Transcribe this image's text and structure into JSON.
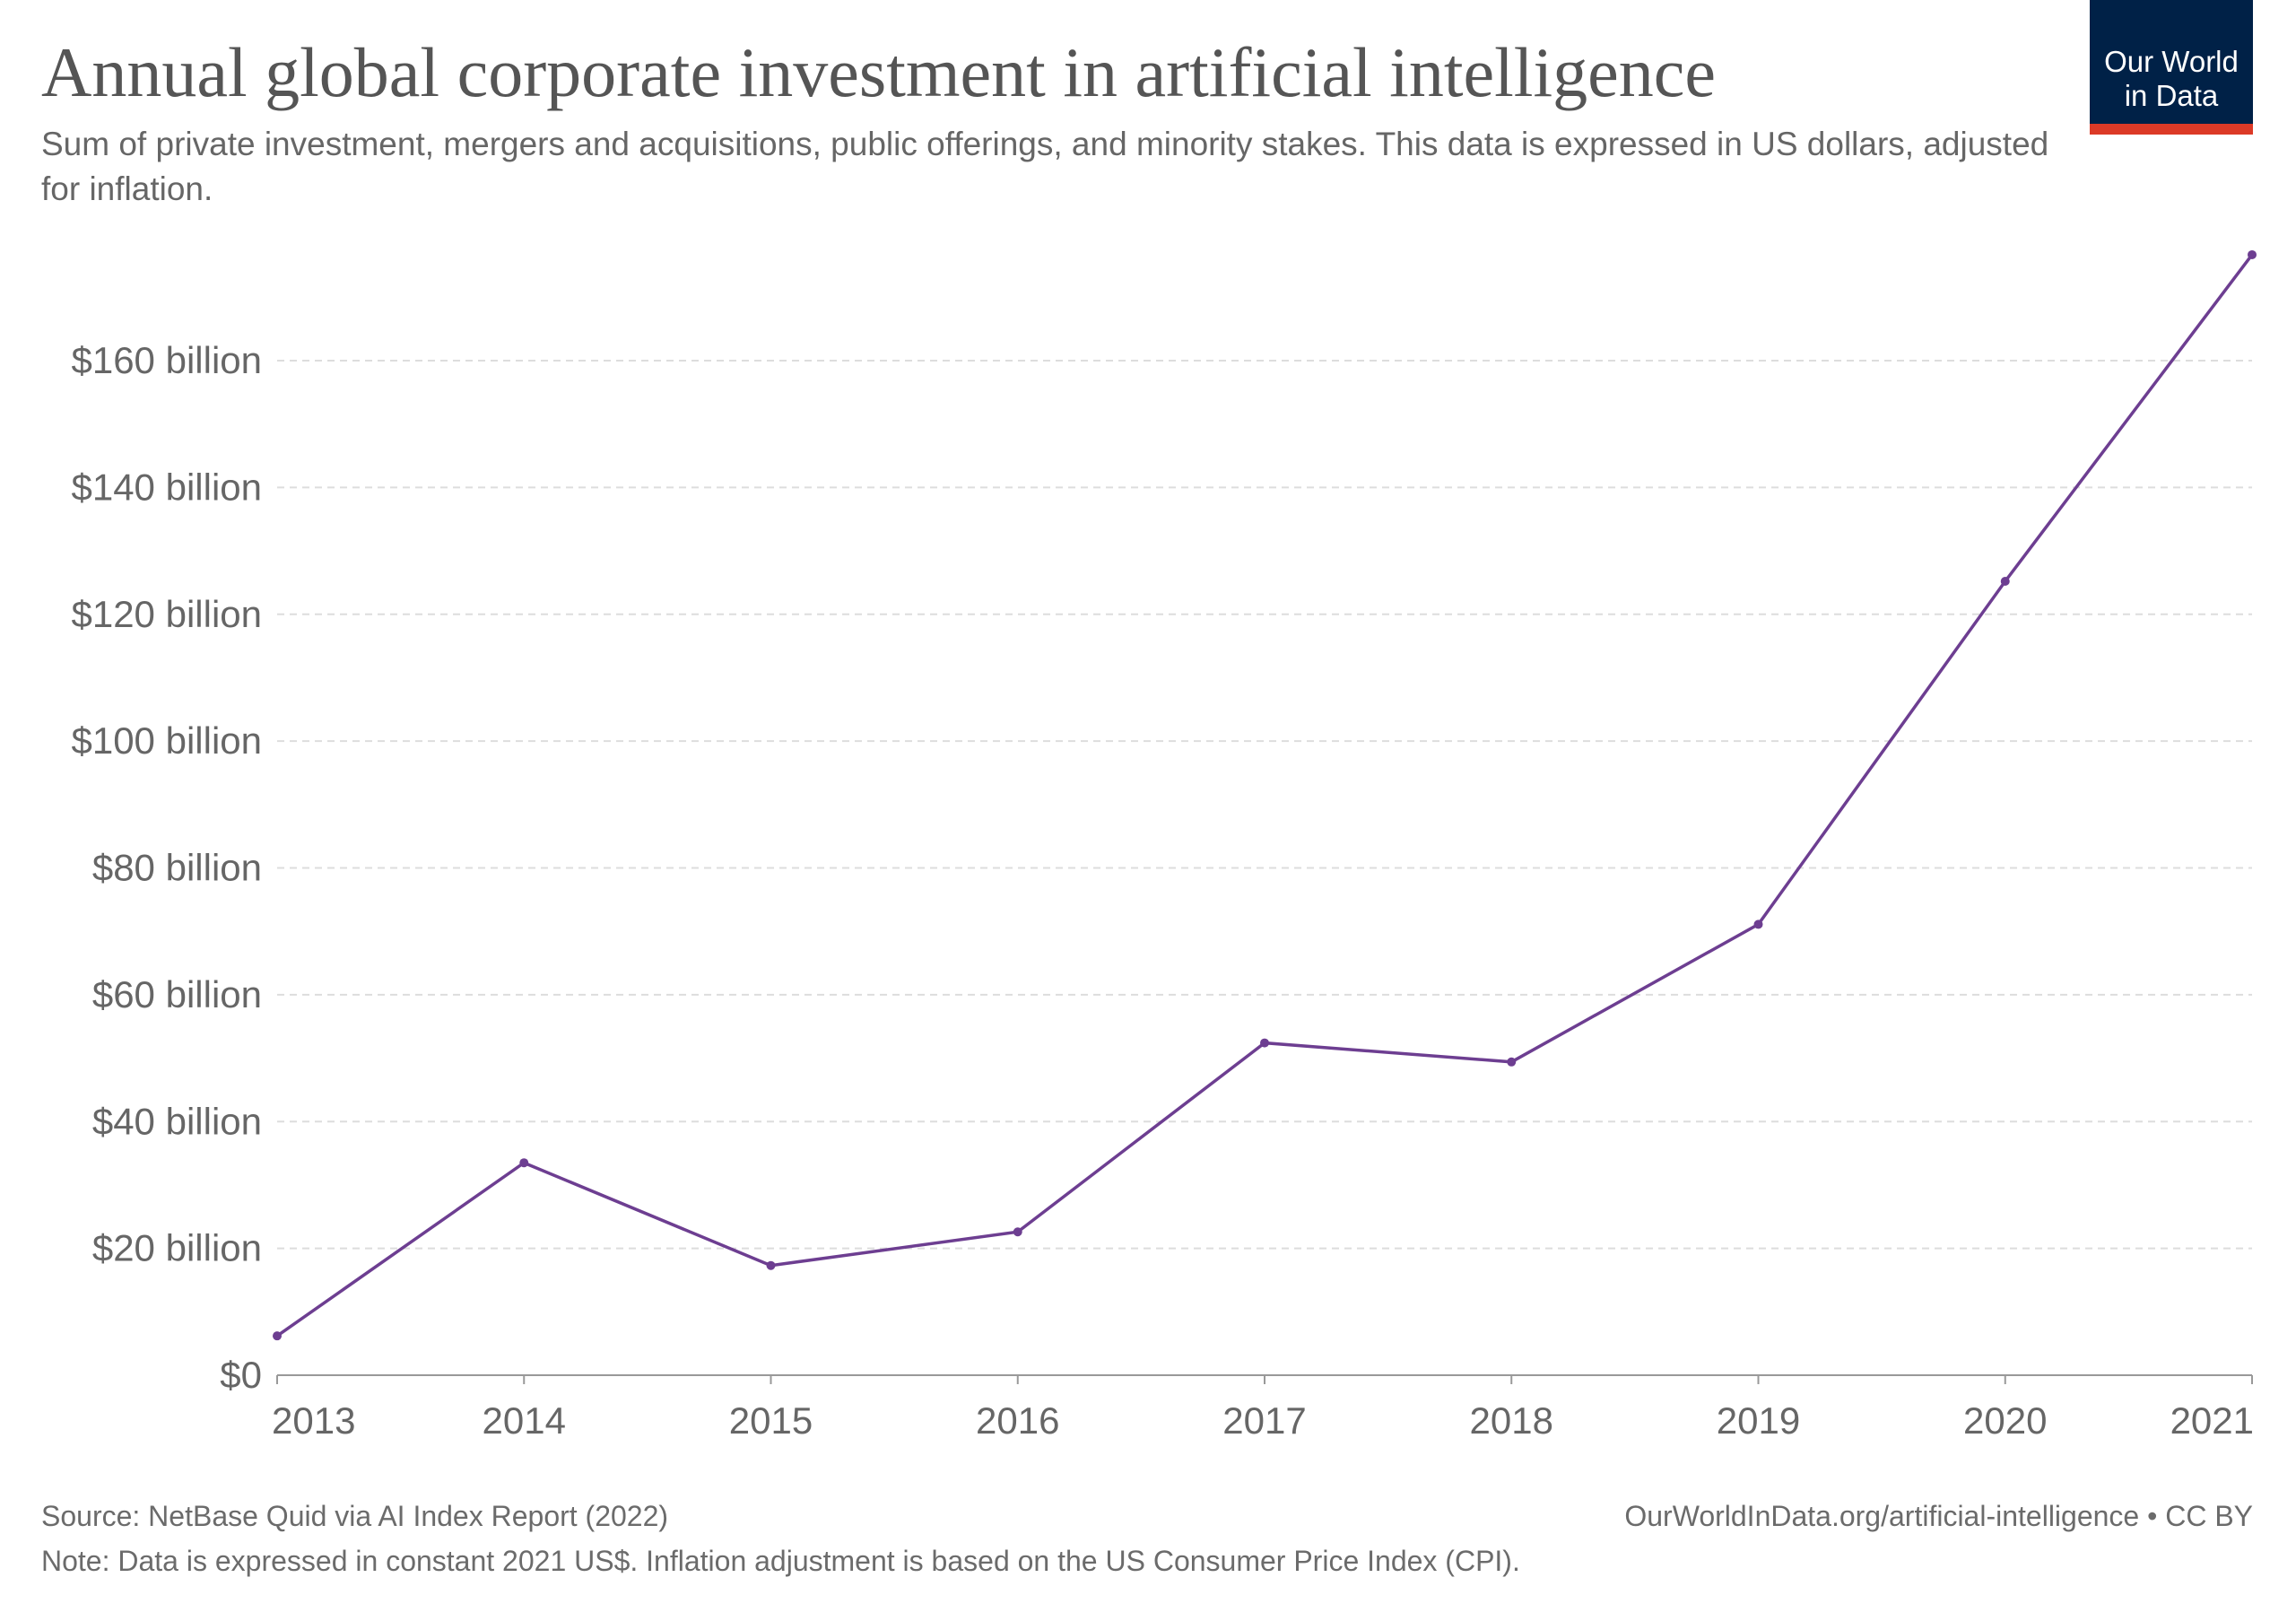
{
  "title": "Annual global corporate investment in artificial intelligence",
  "subtitle": "Sum of private investment, mergers and acquisitions, public offerings, and minority stakes. This data is expressed in US dollars, adjusted for inflation.",
  "logo": {
    "line1": "Our World",
    "line2": "in Data",
    "bg": "#002147",
    "accent": "#dc3a27"
  },
  "footer": {
    "source": "Source: NetBase Quid via AI Index Report (2022)",
    "url": "OurWorldInData.org/artificial-intelligence • CC BY",
    "note": "Note: Data is expressed in constant 2021 US$. Inflation adjustment is based on the US Consumer Price Index (CPI)."
  },
  "chart_data": {
    "type": "line",
    "title": "Annual global corporate investment in artificial intelligence",
    "x": [
      2013,
      2014,
      2015,
      2016,
      2017,
      2018,
      2019,
      2020,
      2021
    ],
    "series": [
      {
        "values": [
          6.2,
          33.5,
          17.3,
          22.6,
          52.4,
          49.4,
          71.1,
          125.2,
          176.7
        ],
        "color": "#6d3e91"
      }
    ],
    "ylim": [
      0,
      176.7
    ],
    "yticks": [
      0,
      20,
      40,
      60,
      80,
      100,
      120,
      140,
      160
    ],
    "ytick_labels": [
      "$0",
      "$20 billion",
      "$40 billion",
      "$60 billion",
      "$80 billion",
      "$100 billion",
      "$120 billion",
      "$140 billion",
      "$160 billion"
    ],
    "xtick_labels": [
      "2013",
      "2014",
      "2015",
      "2016",
      "2017",
      "2018",
      "2019",
      "2020",
      "2021"
    ],
    "grid": "horizontal dashed",
    "legend": "none"
  }
}
